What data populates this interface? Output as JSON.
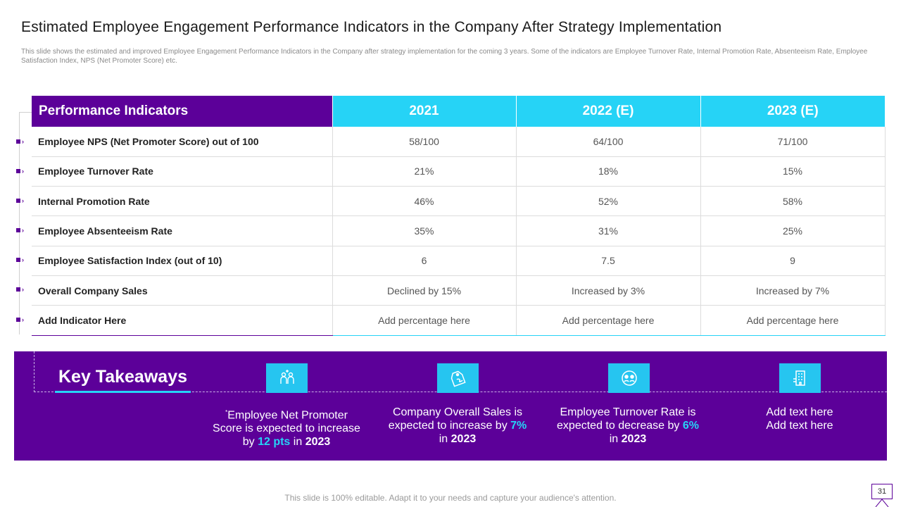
{
  "slide": {
    "title": "Estimated Employee Engagement Performance Indicators in the Company After Strategy Implementation",
    "subtitle": "This slide shows the estimated and improved Employee Engagement Performance Indicators in the Company after strategy implementation for the coming 3 years. Some of the indicators are Employee Turnover Rate, Internal Promotion Rate, Absenteeism Rate, Employee Satisfaction Index, NPS (Net Promoter Score) etc.",
    "footer": "This slide is 100% editable. Adapt it to your needs and capture your audience's attention.",
    "page_number": "31"
  },
  "table": {
    "headers": [
      "Performance Indicators",
      "2021",
      "2022 (E)",
      "2023 (E)"
    ],
    "rows": [
      [
        "Employee NPS (Net Promoter Score) out of 100",
        "58/100",
        "64/100",
        "71/100"
      ],
      [
        "Employee Turnover Rate",
        "21%",
        "18%",
        "15%"
      ],
      [
        "Internal Promotion Rate",
        "46%",
        "52%",
        "58%"
      ],
      [
        "Employee Absenteeism Rate",
        "35%",
        "31%",
        "25%"
      ],
      [
        "Employee Satisfaction Index (out of 10)",
        "6",
        "7.5",
        "9"
      ],
      [
        "Overall Company Sales",
        "Declined by 15%",
        "Increased by 3%",
        "Increased by 7%"
      ],
      [
        "Add Indicator Here",
        "Add percentage here",
        "Add percentage here",
        "Add percentage here"
      ]
    ]
  },
  "takeaways": {
    "heading": "Key Takeaways",
    "items": [
      {
        "icon": "people-icon",
        "text_a": "Employee Net Promoter Score is expected to increase by",
        "highlight": "12 pts",
        "text_b": "in",
        "year": "2023",
        "mark": "*"
      },
      {
        "icon": "price-tag-icon",
        "text_a": "Company Overall Sales is expected to increase by",
        "highlight": "7%",
        "text_b": "in",
        "year": "2023"
      },
      {
        "icon": "team-cycle-icon",
        "text_a": "Employee Turnover  Rate is expected to decrease by",
        "highlight": "6%",
        "text_b": "in",
        "year": "2023"
      },
      {
        "icon": "building-icon",
        "line1": "Add text here",
        "line2": "Add text here"
      }
    ]
  },
  "colors": {
    "purple": "#5c0099",
    "cyan": "#26d3f6"
  }
}
